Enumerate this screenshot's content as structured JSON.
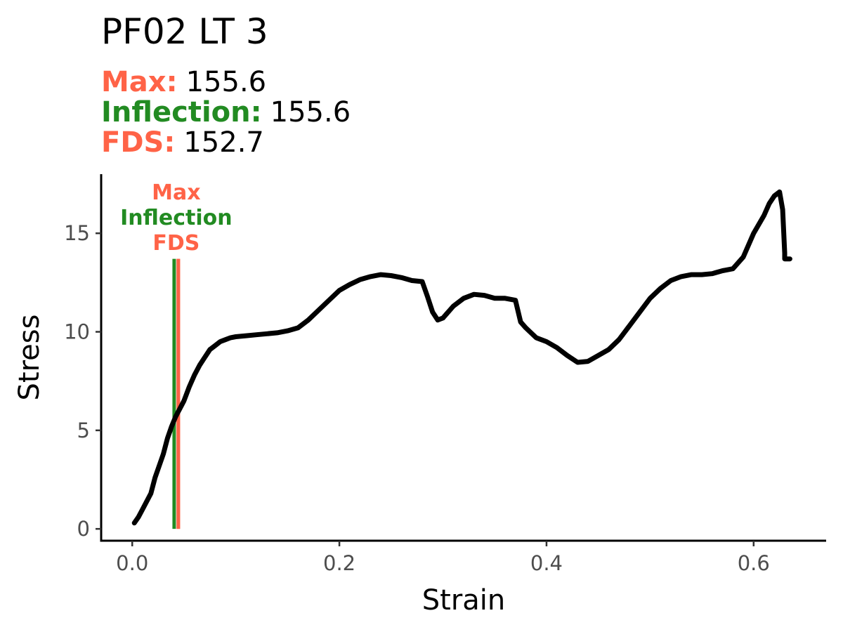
{
  "colors": {
    "max": "#FF6347",
    "inflection": "#228B22",
    "fds": "#FF6347",
    "curve": "#000000",
    "axis": "#000000",
    "tick_text": "#4d4d4d"
  },
  "chart_data": {
    "type": "line",
    "title": "PF02 LT 3",
    "stats": [
      {
        "key": "max",
        "label": "Max:",
        "value": "155.6"
      },
      {
        "key": "inflection",
        "label": "Inflection:",
        "value": "155.6"
      },
      {
        "key": "fds",
        "label": "FDS:",
        "value": "152.7"
      }
    ],
    "xlabel": "Strain",
    "ylabel": "Stress",
    "xlim": [
      -0.03,
      0.67
    ],
    "ylim": [
      -0.6,
      18.0
    ],
    "xticks": [
      0.0,
      0.2,
      0.4,
      0.6
    ],
    "xtick_labels": [
      "0.0",
      "0.2",
      "0.4",
      "0.6"
    ],
    "yticks": [
      0,
      5,
      10,
      15
    ],
    "ytick_labels": [
      "0",
      "5",
      "10",
      "15"
    ],
    "grid": false,
    "legend": "none",
    "markers": [
      {
        "key": "inflection",
        "label": "Inflection",
        "x": 0.0405,
        "y_top": 13.7
      },
      {
        "key": "max",
        "label": "Max",
        "x": 0.0445,
        "y_top": 13.7
      },
      {
        "key": "fds",
        "label": "FDS",
        "x": 0.0445,
        "y_top": 13.7
      }
    ],
    "marker_label_order": [
      "max",
      "inflection",
      "fds"
    ],
    "series": [
      {
        "x": [
          0.002,
          0.006,
          0.01,
          0.014,
          0.018,
          0.022,
          0.026,
          0.03,
          0.034,
          0.038,
          0.042,
          0.046,
          0.05,
          0.055,
          0.06,
          0.065,
          0.07,
          0.075,
          0.08,
          0.085,
          0.09,
          0.095,
          0.1,
          0.11,
          0.12,
          0.13,
          0.14,
          0.15,
          0.16,
          0.17,
          0.18,
          0.19,
          0.2,
          0.21,
          0.22,
          0.23,
          0.24,
          0.25,
          0.26,
          0.27,
          0.28,
          0.285,
          0.29,
          0.295,
          0.3,
          0.31,
          0.32,
          0.33,
          0.34,
          0.35,
          0.36,
          0.37,
          0.375,
          0.38,
          0.39,
          0.4,
          0.41,
          0.42,
          0.43,
          0.44,
          0.45,
          0.46,
          0.47,
          0.48,
          0.49,
          0.5,
          0.51,
          0.52,
          0.53,
          0.54,
          0.55,
          0.56,
          0.57,
          0.58,
          0.59,
          0.6,
          0.61,
          0.615,
          0.62,
          0.625,
          0.628,
          0.63,
          0.63,
          0.635
        ],
        "y": [
          0.3,
          0.6,
          1.0,
          1.4,
          1.8,
          2.6,
          3.2,
          3.8,
          4.6,
          5.2,
          5.7,
          6.1,
          6.5,
          7.2,
          7.8,
          8.3,
          8.7,
          9.1,
          9.3,
          9.5,
          9.6,
          9.7,
          9.75,
          9.8,
          9.85,
          9.9,
          9.95,
          10.05,
          10.2,
          10.6,
          11.1,
          11.6,
          12.1,
          12.4,
          12.65,
          12.8,
          12.9,
          12.85,
          12.75,
          12.6,
          12.55,
          11.8,
          11.0,
          10.6,
          10.7,
          11.3,
          11.7,
          11.9,
          11.85,
          11.7,
          11.7,
          11.6,
          10.5,
          10.2,
          9.7,
          9.5,
          9.2,
          8.8,
          8.45,
          8.5,
          8.8,
          9.1,
          9.6,
          10.3,
          11.0,
          11.7,
          12.2,
          12.6,
          12.8,
          12.9,
          12.9,
          12.95,
          13.1,
          13.2,
          13.8,
          15.0,
          15.9,
          16.5,
          16.9,
          17.1,
          16.2,
          14.0,
          13.7,
          13.7
        ]
      }
    ]
  }
}
